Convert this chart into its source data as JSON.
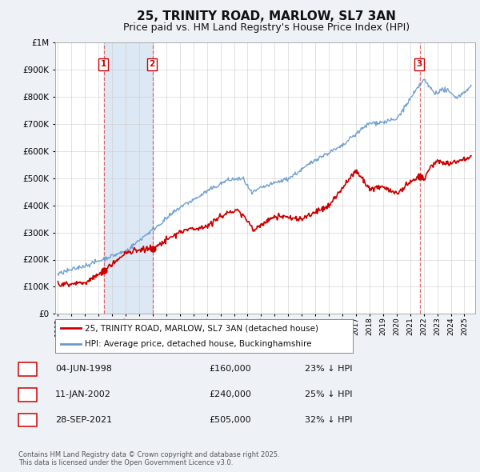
{
  "title": "25, TRINITY ROAD, MARLOW, SL7 3AN",
  "subtitle": "Price paid vs. HM Land Registry's House Price Index (HPI)",
  "red_line_label": "25, TRINITY ROAD, MARLOW, SL7 3AN (detached house)",
  "blue_line_label": "HPI: Average price, detached house, Buckinghamshire",
  "footer": "Contains HM Land Registry data © Crown copyright and database right 2025.\nThis data is licensed under the Open Government Licence v3.0.",
  "transactions": [
    {
      "num": 1,
      "date": "04-JUN-1998",
      "price": "£160,000",
      "note": "23% ↓ HPI",
      "year": 1998.43,
      "value": 160000
    },
    {
      "num": 2,
      "date": "11-JAN-2002",
      "price": "£240,000",
      "note": "25% ↓ HPI",
      "year": 2002.03,
      "value": 240000
    },
    {
      "num": 3,
      "date": "28-SEP-2021",
      "price": "£505,000",
      "note": "32% ↓ HPI",
      "year": 2021.75,
      "value": 505000
    }
  ],
  "shade_spans": [
    [
      1998.43,
      2002.03
    ]
  ],
  "ylim": [
    0,
    1000000
  ],
  "xlim": [
    1994.8,
    2025.8
  ],
  "bg_color": "#eef2f7",
  "plot_bg": "#ffffff",
  "red_color": "#cc0000",
  "blue_color": "#6699cc",
  "shade_color": "#dde8f5",
  "grid_color": "#cccccc",
  "vline_color": "#dd4444",
  "title_fontsize": 11,
  "subtitle_fontsize": 9
}
